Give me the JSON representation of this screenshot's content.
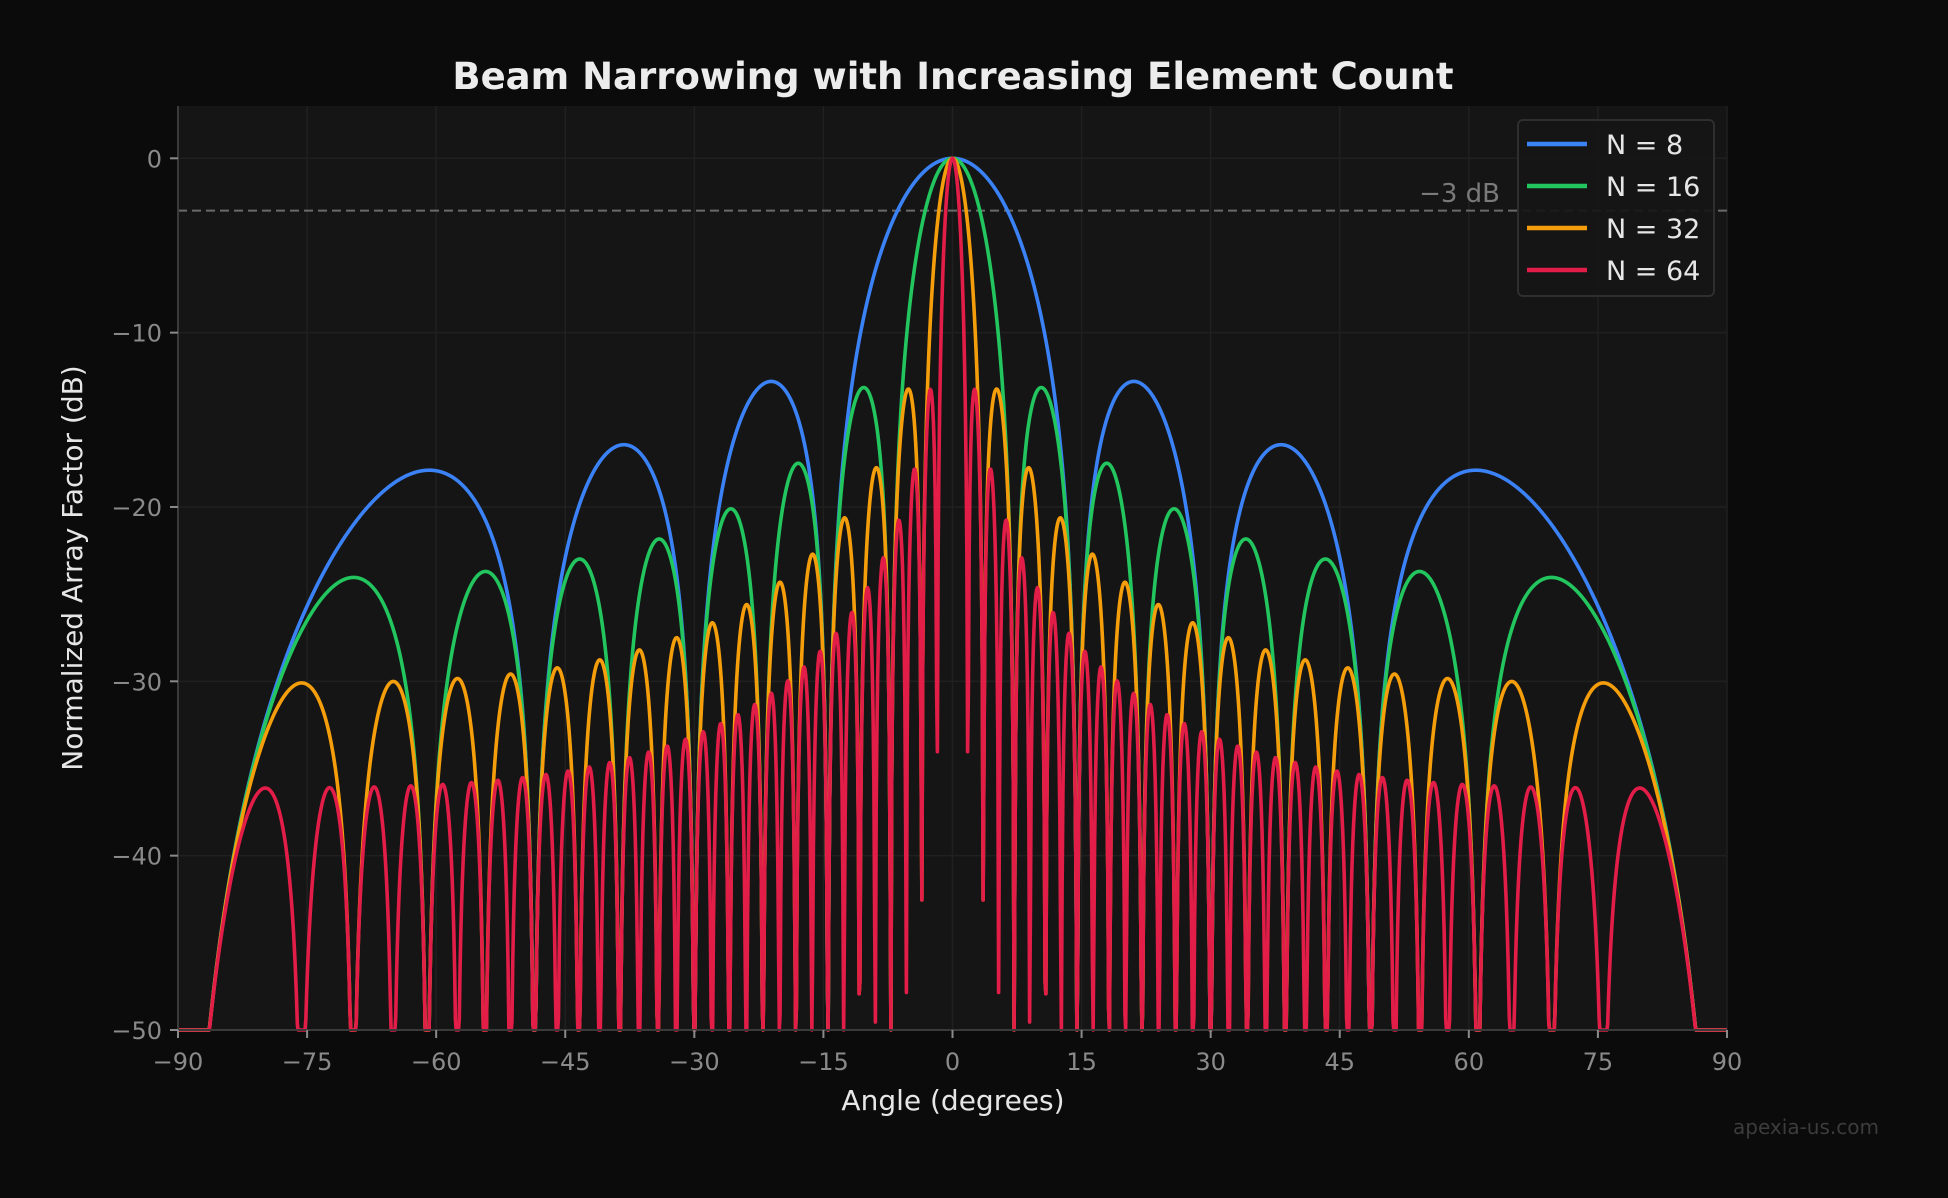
{
  "chart_data": {
    "type": "line",
    "title": "Beam Narrowing with Increasing Element Count",
    "xlabel": "Angle (degrees)",
    "ylabel": "Normalized Array Factor (dB)",
    "xlim": [
      -90,
      90
    ],
    "ylim": [
      -50,
      3
    ],
    "xticks": [
      -90,
      -75,
      -60,
      -45,
      -30,
      -15,
      0,
      15,
      30,
      45,
      60,
      75,
      90
    ],
    "xtick_labels": [
      "−90",
      "−75",
      "−60",
      "−45",
      "−30",
      "−15",
      "0",
      "15",
      "30",
      "45",
      "60",
      "75",
      "90"
    ],
    "yticks": [
      0,
      -10,
      -20,
      -30,
      -40,
      -50
    ],
    "ytick_labels": [
      "0",
      "−10",
      "−20",
      "−30",
      "−40",
      "−50"
    ],
    "grid": true,
    "legend_position": "top-right",
    "reference_line": {
      "y": -3,
      "style": "dashed",
      "color": "#6a6a6a",
      "label": "−3 dB"
    },
    "curve": "normalized uniform linear array factor, half-wavelength spacing, clipped at −50 dB",
    "series": [
      {
        "name": "N = 8",
        "elements": 8,
        "color": "#3b82f6",
        "peak_db": 0,
        "first_sidelobe_db": -13.1
      },
      {
        "name": "N = 16",
        "elements": 16,
        "color": "#22c55e",
        "peak_db": 0,
        "first_sidelobe_db": -13.2
      },
      {
        "name": "N = 32",
        "elements": 32,
        "color": "#f59e0b",
        "peak_db": 0,
        "first_sidelobe_db": -13.3
      },
      {
        "name": "N = 64",
        "elements": 64,
        "color": "#e11d48",
        "peak_db": 0,
        "first_sidelobe_db": -13.3
      }
    ]
  },
  "watermark": "apexia-us.com",
  "colors": {
    "background": "#0b0b0b",
    "plot_background": "#151515",
    "grid": "#242424"
  }
}
